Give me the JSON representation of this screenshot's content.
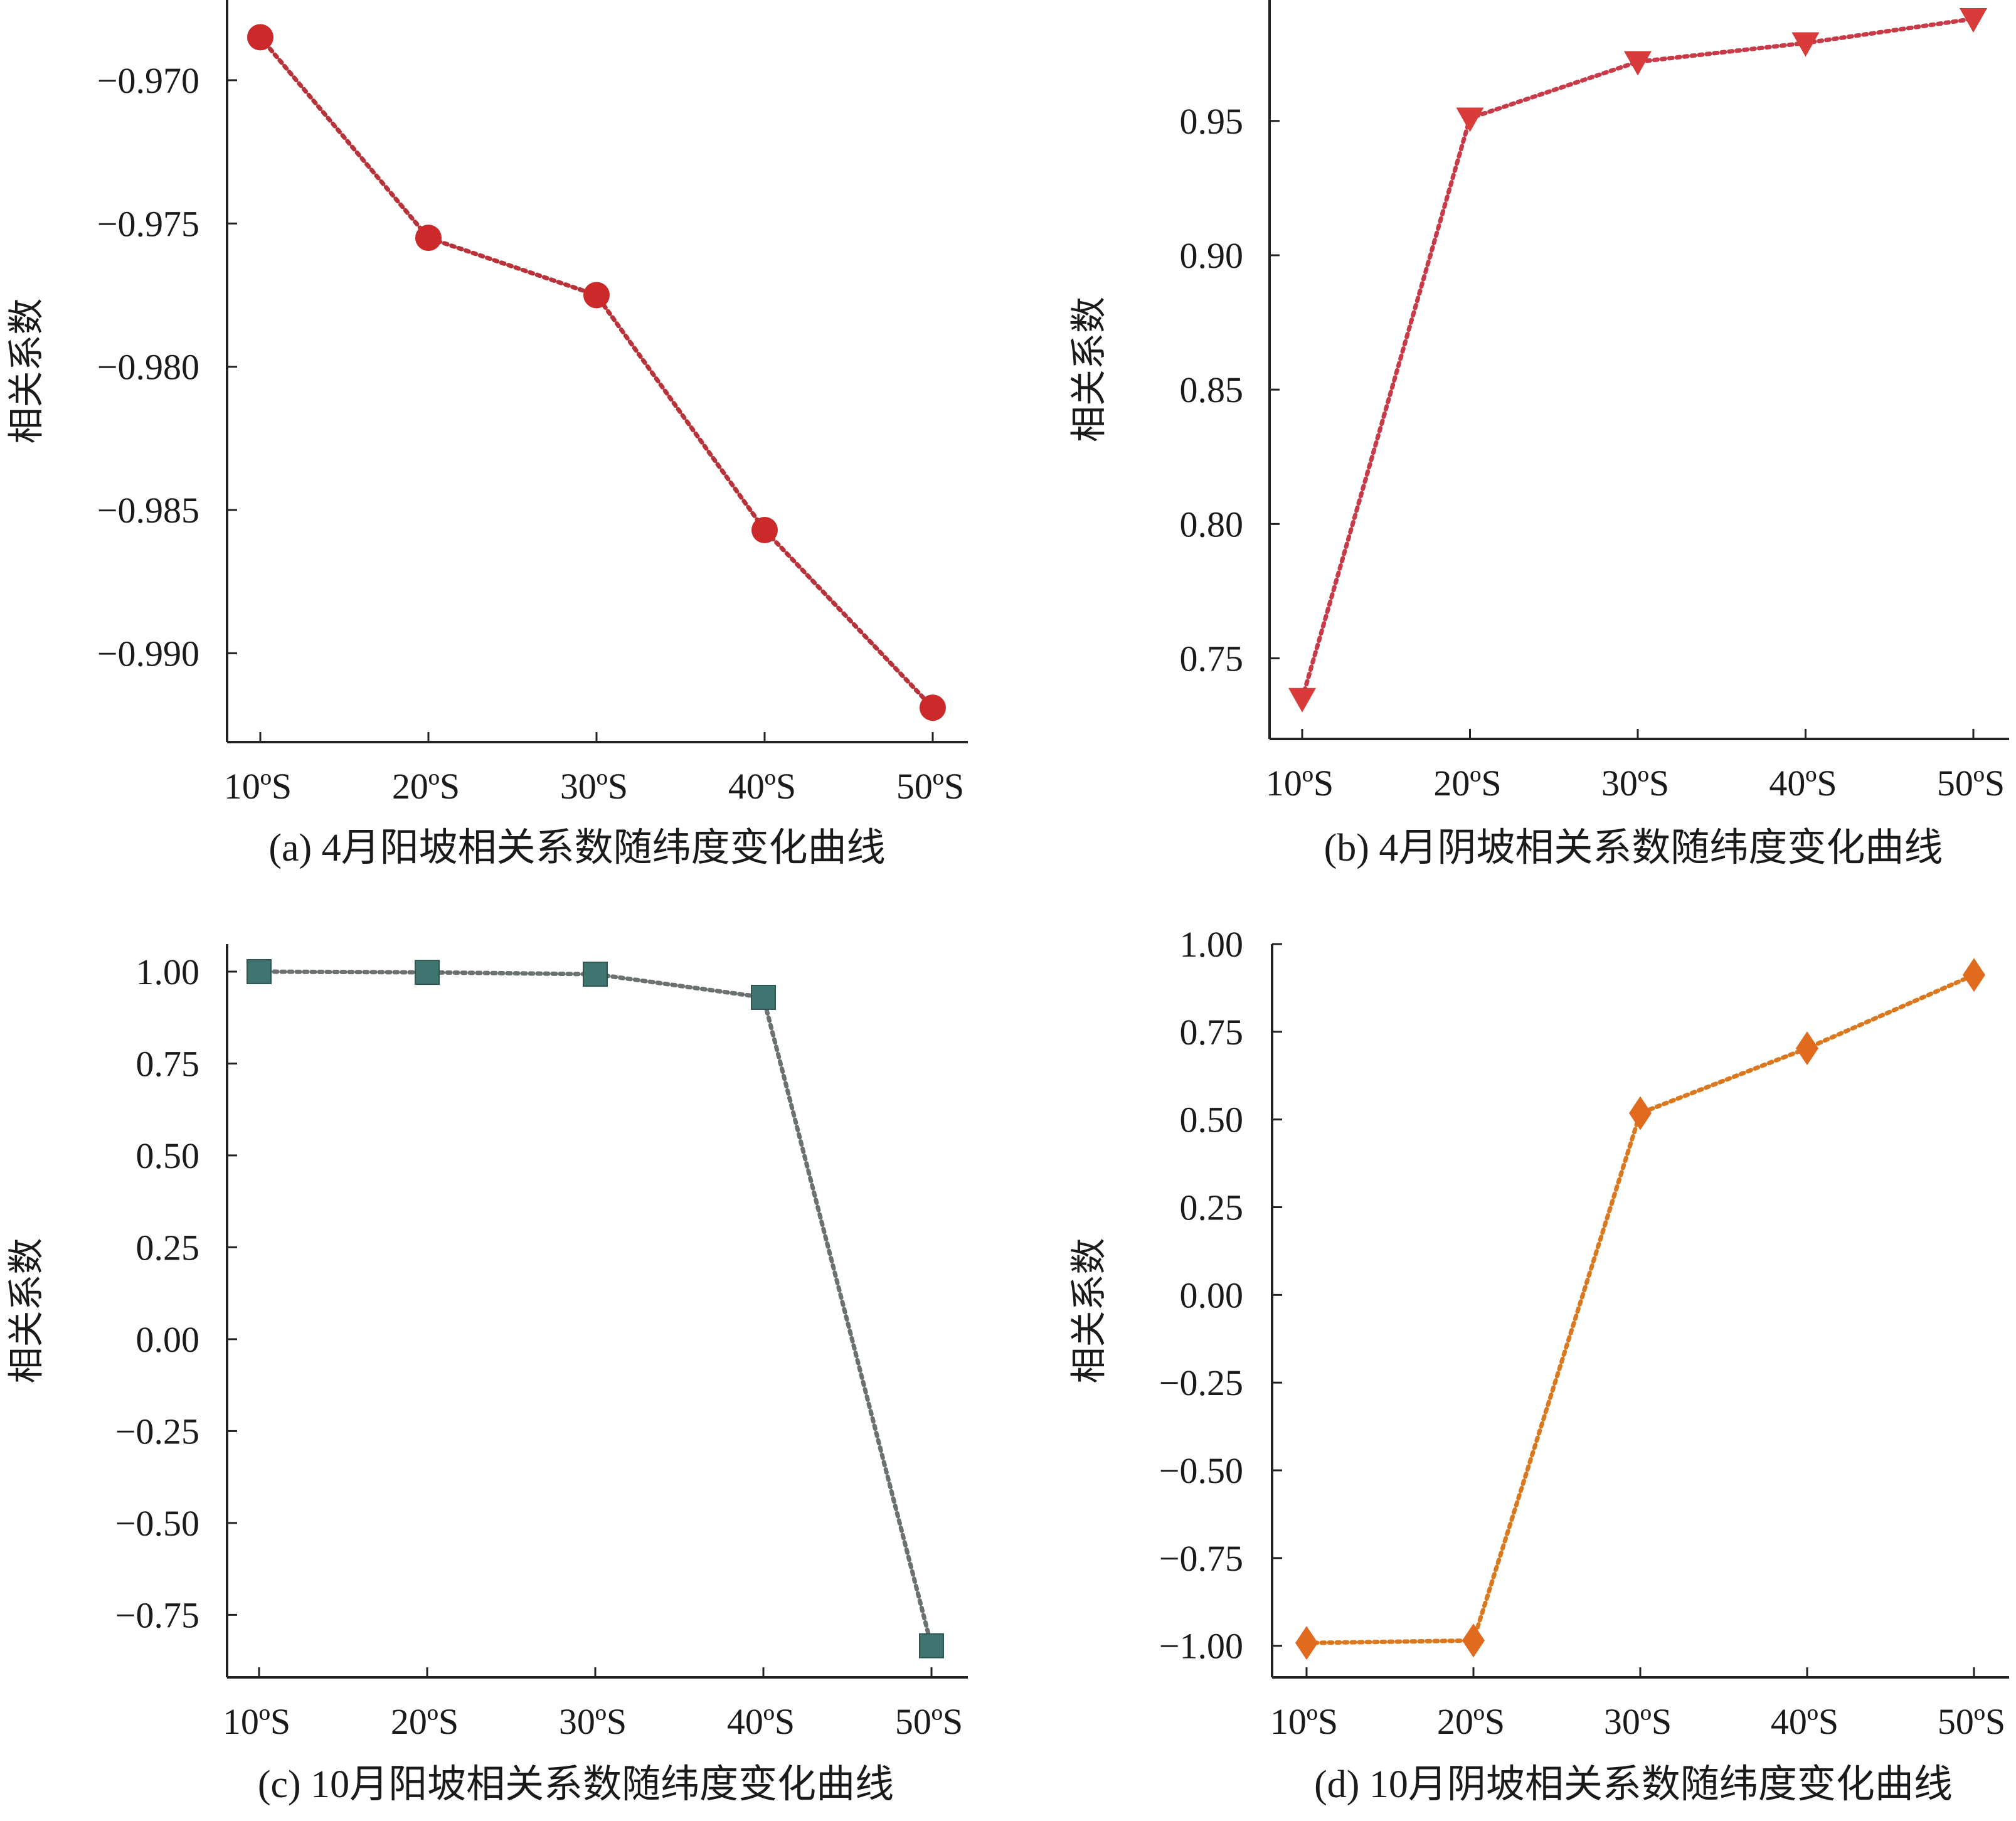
{
  "chart_data": [
    {
      "id": "a",
      "type": "line",
      "caption": "(a) 4月阳坡相关系数随纬度变化曲线",
      "ylabel": "相关系数",
      "categories": [
        "10ºS",
        "20ºS",
        "30ºS",
        "40ºS",
        "50ºS"
      ],
      "values": [
        -0.9685,
        -0.9755,
        -0.9775,
        -0.9857,
        -0.9919
      ],
      "yticks": [
        -0.97,
        -0.975,
        -0.98,
        -0.985,
        -0.99
      ],
      "ytick_labels": [
        "−0.970",
        "−0.975",
        "−0.980",
        "−0.985",
        "−0.990"
      ],
      "ylim": [
        -0.9931,
        -0.9672
      ],
      "marker": "circle",
      "color": "#cc2a2a",
      "line_color": "#b8323a"
    },
    {
      "id": "b",
      "type": "line",
      "caption": "(b) 4月阴坡相关系数随纬度变化曲线",
      "ylabel": "相关系数",
      "categories": [
        "10ºS",
        "20ºS",
        "30ºS",
        "40ºS",
        "50ºS"
      ],
      "values": [
        0.735,
        0.951,
        0.972,
        0.979,
        0.988
      ],
      "yticks": [
        0.75,
        0.8,
        0.85,
        0.9,
        0.95
      ],
      "ytick_labels": [
        "0.75",
        "0.80",
        "0.85",
        "0.90",
        "0.95"
      ],
      "ylim": [
        0.72,
        0.995
      ],
      "marker": "triangle-down",
      "color": "#d93a3a",
      "line_color": "#c73a48"
    },
    {
      "id": "c",
      "type": "line",
      "caption": "(c) 10月阳坡相关系数随纬度变化曲线",
      "ylabel": "相关系数",
      "categories": [
        "10ºS",
        "20ºS",
        "30ºS",
        "40ºS",
        "50ºS"
      ],
      "values": [
        1.0,
        0.998,
        0.993,
        0.93,
        -0.834
      ],
      "yticks": [
        1.0,
        0.75,
        0.5,
        0.25,
        0.0,
        -0.25,
        -0.5,
        -0.75
      ],
      "ytick_labels": [
        "1.00",
        "0.75",
        "0.50",
        "0.25",
        "0.00",
        "−0.25",
        "−0.50",
        "−0.75"
      ],
      "ylim": [
        -0.92,
        1.075
      ],
      "marker": "square",
      "color": "#3f7470",
      "line_color": "#6b7070"
    },
    {
      "id": "d",
      "type": "line",
      "caption": "(d) 10月阴坡相关系数随纬度变化曲线",
      "ylabel": "相关系数",
      "categories": [
        "10ºS",
        "20ºS",
        "30ºS",
        "40ºS",
        "50ºS"
      ],
      "values": [
        -0.992,
        -0.985,
        0.518,
        0.703,
        0.912
      ],
      "yticks": [
        1.0,
        0.75,
        0.5,
        0.25,
        0.0,
        -0.25,
        -0.5,
        -0.75,
        -1.0
      ],
      "ytick_labels": [
        "1.00",
        "0.75",
        "0.50",
        "0.25",
        "0.00",
        "−0.25",
        "−0.50",
        "−0.75",
        "−1.00"
      ],
      "ylim": [
        -1.09,
        1.0
      ],
      "marker": "diamond",
      "color": "#e06a1e",
      "line_color": "#d9781e"
    }
  ]
}
